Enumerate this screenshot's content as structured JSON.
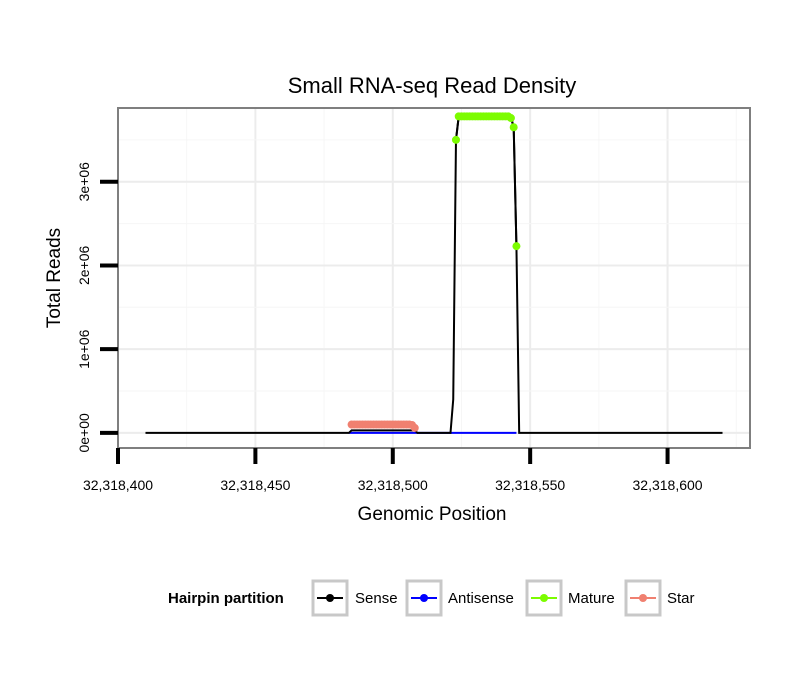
{
  "chart_data": {
    "type": "line",
    "title": "Small RNA-seq Read Density",
    "xlabel": "Genomic Position",
    "ylabel": "Total Reads",
    "xlim": [
      32318400,
      32318630
    ],
    "ylim": [
      -180000,
      3880000
    ],
    "x_ticks": [
      32318400,
      32318450,
      32318500,
      32318550,
      32318600
    ],
    "x_tick_labels": [
      "32,318,400",
      "32,318,450",
      "32,318,500",
      "32,318,550",
      "32,318,600"
    ],
    "y_ticks": [
      0,
      1000000,
      2000000,
      3000000
    ],
    "y_tick_labels": [
      "0e+00",
      "1e+06",
      "2e+06",
      "3e+06"
    ],
    "grid": true,
    "legend": {
      "title": "Hairpin partition",
      "position": "bottom",
      "entries": [
        {
          "name": "Sense",
          "color": "#000000"
        },
        {
          "name": "Antisense",
          "color": "#0000ff"
        },
        {
          "name": "Mature",
          "color": "#7cfc00"
        },
        {
          "name": "Star",
          "color": "#f08070"
        }
      ]
    },
    "series": [
      {
        "name": "Sense",
        "color": "#000000",
        "markers": false,
        "x": [
          32318410,
          32318484,
          32318485,
          32318508,
          32318509,
          32318521,
          32318522,
          32318523,
          32318524,
          32318543,
          32318544,
          32318545,
          32318546,
          32318547,
          32318620
        ],
        "y": [
          0,
          0,
          30000,
          30000,
          0,
          0,
          400000,
          3500000,
          3780000,
          3780000,
          3650000,
          2230000,
          0,
          0,
          0
        ]
      },
      {
        "name": "Antisense",
        "color": "#0000ff",
        "markers": false,
        "x": [
          32318484,
          32318508,
          32318509,
          32318545
        ],
        "y": [
          0,
          0,
          0,
          0
        ]
      },
      {
        "name": "Mature",
        "color": "#7cfc00",
        "markers": true,
        "x": [
          32318523,
          32318524,
          32318525,
          32318526,
          32318527,
          32318528,
          32318529,
          32318530,
          32318531,
          32318532,
          32318533,
          32318534,
          32318535,
          32318536,
          32318537,
          32318538,
          32318539,
          32318540,
          32318541,
          32318542,
          32318543,
          32318544,
          32318545
        ],
        "y": [
          3500000,
          3780000,
          3780000,
          3780000,
          3780000,
          3780000,
          3780000,
          3780000,
          3780000,
          3780000,
          3780000,
          3780000,
          3780000,
          3780000,
          3780000,
          3780000,
          3780000,
          3780000,
          3780000,
          3780000,
          3760000,
          3650000,
          2230000
        ]
      },
      {
        "name": "Star",
        "color": "#f08070",
        "markers": true,
        "x": [
          32318485,
          32318486,
          32318487,
          32318488,
          32318489,
          32318490,
          32318491,
          32318492,
          32318493,
          32318494,
          32318495,
          32318496,
          32318497,
          32318498,
          32318499,
          32318500,
          32318501,
          32318502,
          32318503,
          32318504,
          32318505,
          32318506,
          32318507,
          32318508
        ],
        "y": [
          100000,
          100000,
          100000,
          100000,
          100000,
          100000,
          100000,
          100000,
          100000,
          100000,
          100000,
          100000,
          100000,
          100000,
          100000,
          100000,
          100000,
          100000,
          100000,
          100000,
          100000,
          100000,
          95000,
          60000
        ]
      }
    ]
  }
}
